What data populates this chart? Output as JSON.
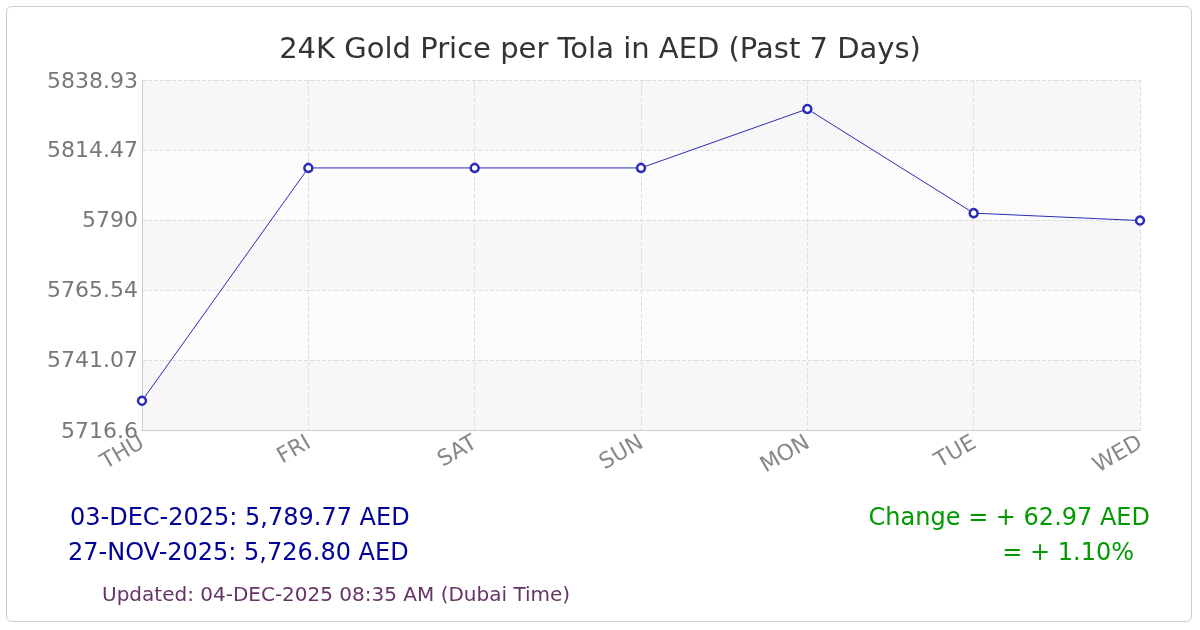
{
  "chart_data": {
    "type": "line",
    "title": "24K Gold Price per Tola in AED (Past 7 Days)",
    "categories": [
      "THU",
      "FRI",
      "SAT",
      "SUN",
      "MON",
      "TUE",
      "WED"
    ],
    "series": [
      {
        "color": "#2b2bb8",
        "values": [
          5726.8,
          5808.2,
          5808.2,
          5808.2,
          5828.8,
          5792.4,
          5789.8
        ]
      }
    ],
    "ylim": [
      5716.6,
      5838.93
    ],
    "yticks": [
      5716.6,
      5741.07,
      5765.54,
      5790,
      5814.47,
      5838.93
    ],
    "grid": true,
    "marker": "circle",
    "line_style": "solid",
    "annotations": [
      "03-DEC-2025: 5,789.77 AED",
      "27-NOV-2025: 5,726.80 AED",
      "Change = + 62.97 AED",
      "= + 1.10%",
      "Updated: 04-DEC-2025 08:35 AM (Dubai Time)"
    ]
  }
}
